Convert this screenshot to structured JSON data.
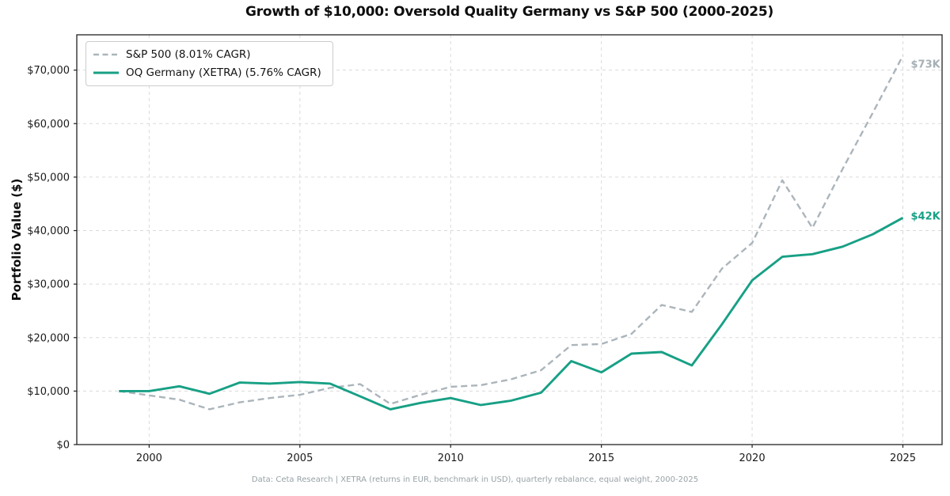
{
  "chart_data": {
    "type": "line",
    "title": "Growth of $10,000: Oversold Quality Germany vs S&P 500 (2000-2025)",
    "ylabel": "Portfolio Value ($)",
    "footnote": "Data: Ceta Research | XETRA (returns in EUR, benchmark in USD), quarterly rebalance, equal weight, 2000-2025",
    "x": [
      1999,
      2000,
      2001,
      2002,
      2003,
      2004,
      2005,
      2006,
      2007,
      2008,
      2009,
      2010,
      2011,
      2012,
      2013,
      2014,
      2015,
      2016,
      2017,
      2018,
      2019,
      2020,
      2021,
      2022,
      2023,
      2024,
      2025
    ],
    "series": [
      {
        "name": "S&P 500 (8.01% CAGR)",
        "color": "#abb5bb",
        "style": "dashed",
        "values_k": [
          10.0,
          9.2,
          8.4,
          6.6,
          7.9,
          8.7,
          9.3,
          10.6,
          11.3,
          7.6,
          9.3,
          10.8,
          11.1,
          12.2,
          13.9,
          18.6,
          18.8,
          20.7,
          26.1,
          24.8,
          32.9,
          37.7,
          49.4,
          40.5,
          51.5,
          62.0,
          72.7
        ]
      },
      {
        "name": "OQ Germany (XETRA) (5.76% CAGR)",
        "color": "#17a085",
        "style": "solid",
        "values_k": [
          10.0,
          10.0,
          10.9,
          9.5,
          11.6,
          11.4,
          11.7,
          11.4,
          9.0,
          6.6,
          7.8,
          8.7,
          7.4,
          8.2,
          9.7,
          15.6,
          13.5,
          17.0,
          17.3,
          14.8,
          22.5,
          30.7,
          35.1,
          35.6,
          37.0,
          39.3,
          42.4
        ]
      }
    ],
    "xticks": [
      2000,
      2005,
      2010,
      2015,
      2020,
      2025
    ],
    "xtick_labels": [
      "2000",
      "2005",
      "2010",
      "2015",
      "2020",
      "2025"
    ],
    "yticks_k": [
      0,
      10,
      20,
      30,
      40,
      50,
      60,
      70
    ],
    "ytick_labels": [
      "$0",
      "$10,000",
      "$20,000",
      "$30,000",
      "$40,000",
      "$50,000",
      "$60,000",
      "$70,000"
    ],
    "xlim": [
      1997.6,
      2026.3
    ],
    "ylim_k": [
      0,
      76.6
    ],
    "grid": true,
    "legend_position": "upper-left",
    "annotations": [
      {
        "text": "$73K",
        "color": "#a6b0b6",
        "value_k": 72.7,
        "year": 2025
      },
      {
        "text": "$42K",
        "color": "#17a085",
        "value_k": 42.4,
        "year": 2025
      }
    ]
  }
}
